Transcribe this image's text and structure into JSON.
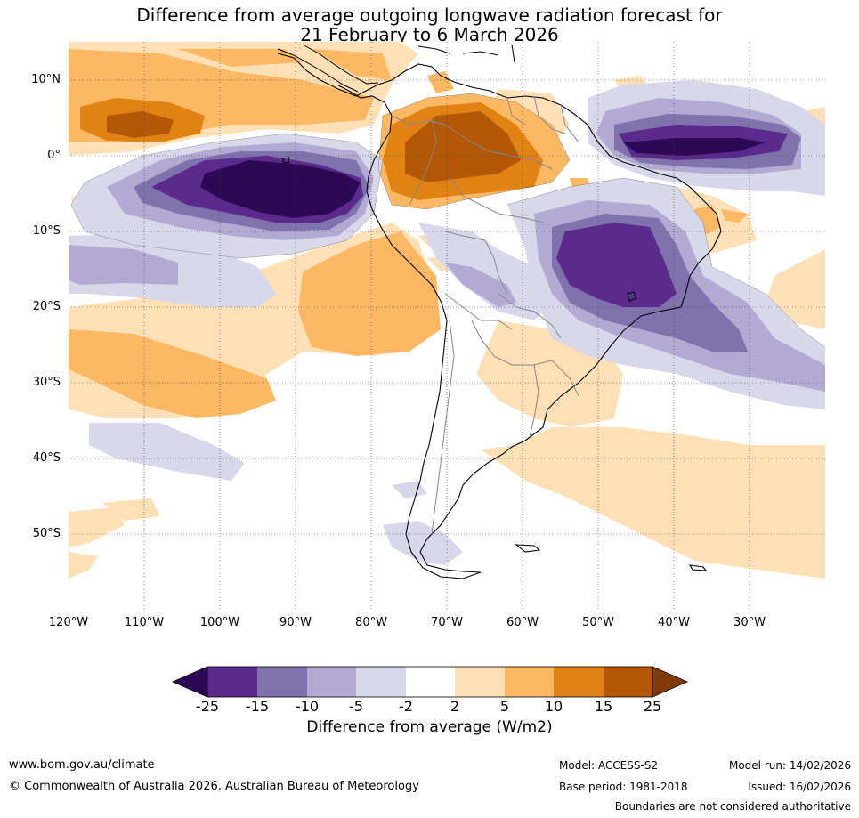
{
  "title": {
    "line1": "Difference from average outgoing longwave radiation forecast for",
    "line2": "21 February to 6 March 2026"
  },
  "map": {
    "lat_labels": [
      "10°N",
      "0°",
      "10°S",
      "20°S",
      "30°S",
      "40°S",
      "50°S"
    ],
    "lon_labels": [
      "120°W",
      "110°W",
      "100°W",
      "90°W",
      "80°W",
      "70°W",
      "60°W",
      "50°W",
      "40°W",
      "30°W"
    ]
  },
  "colorbar": {
    "ticks": [
      "-25",
      "-15",
      "-10",
      "-5",
      "-2",
      "2",
      "5",
      "10",
      "15",
      "25"
    ],
    "colors": [
      "#2e0854",
      "#5a2a8c",
      "#8072ad",
      "#b2aad2",
      "#d8d8ea",
      "#ffffff",
      "#fee0b6",
      "#fdb863",
      "#e08214",
      "#b35806",
      "#7f3b08"
    ],
    "label": "Difference from average (W/m2)"
  },
  "footer": {
    "website": "www.bom.gov.au/climate",
    "copyright": "© Commonwealth of Australia 2026, Australian Bureau of Meteorology",
    "model": "Model: ACCESS-S2",
    "base_period": "Base period: 1981-2018",
    "model_run": "Model run: 14/02/2026",
    "issued": "Issued: 16/02/2026",
    "disclaimer": "Boundaries are not considered authoritative"
  }
}
